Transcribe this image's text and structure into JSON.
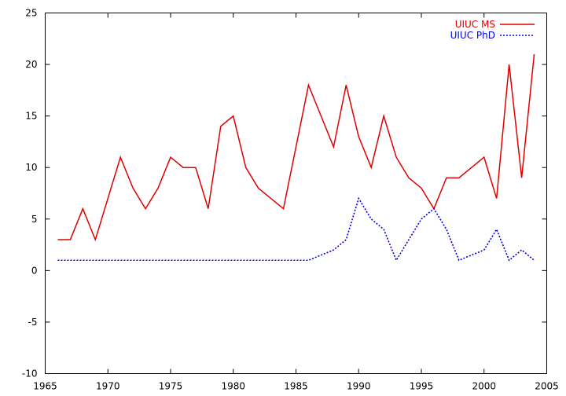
{
  "chart_data": {
    "type": "line",
    "title": "",
    "xlabel": "",
    "ylabel": "",
    "xlim": [
      1965,
      2005
    ],
    "ylim": [
      -10,
      25
    ],
    "xticks": [
      1965,
      1970,
      1975,
      1980,
      1985,
      1990,
      1995,
      2000,
      2005
    ],
    "yticks": [
      -10,
      -5,
      0,
      5,
      10,
      15,
      20,
      25
    ],
    "grid": false,
    "legend_position": "top-right",
    "x": [
      1966,
      1967,
      1968,
      1969,
      1970,
      1971,
      1972,
      1973,
      1974,
      1975,
      1976,
      1977,
      1978,
      1979,
      1980,
      1981,
      1982,
      1983,
      1984,
      1985,
      1986,
      1987,
      1988,
      1989,
      1990,
      1991,
      1992,
      1993,
      1994,
      1995,
      1996,
      1997,
      1998,
      1999,
      2000,
      2001,
      2002,
      2003,
      2004
    ],
    "series": [
      {
        "name": "UIUC MS",
        "color": "#e00000",
        "dash": "solid",
        "values": [
          3,
          3,
          6,
          3,
          7,
          11,
          8,
          6,
          8,
          11,
          10,
          10,
          6,
          14,
          15,
          10,
          8,
          7,
          6,
          12,
          18,
          15,
          12,
          18,
          13,
          10,
          15,
          11,
          9,
          8,
          6,
          9,
          9,
          10,
          11,
          7,
          20,
          9,
          21
        ]
      },
      {
        "name": "UIUC PhD",
        "color": "#0000e0",
        "dash": "dotted",
        "values": [
          1,
          1,
          1,
          1,
          1,
          1,
          1,
          1,
          1,
          1,
          1,
          1,
          1,
          1,
          1,
          1,
          1,
          1,
          1,
          1,
          1,
          1.5,
          2,
          3,
          7,
          5,
          4,
          1,
          3,
          5,
          6,
          4,
          1,
          1.5,
          2,
          4,
          1,
          2,
          1
        ]
      }
    ]
  }
}
